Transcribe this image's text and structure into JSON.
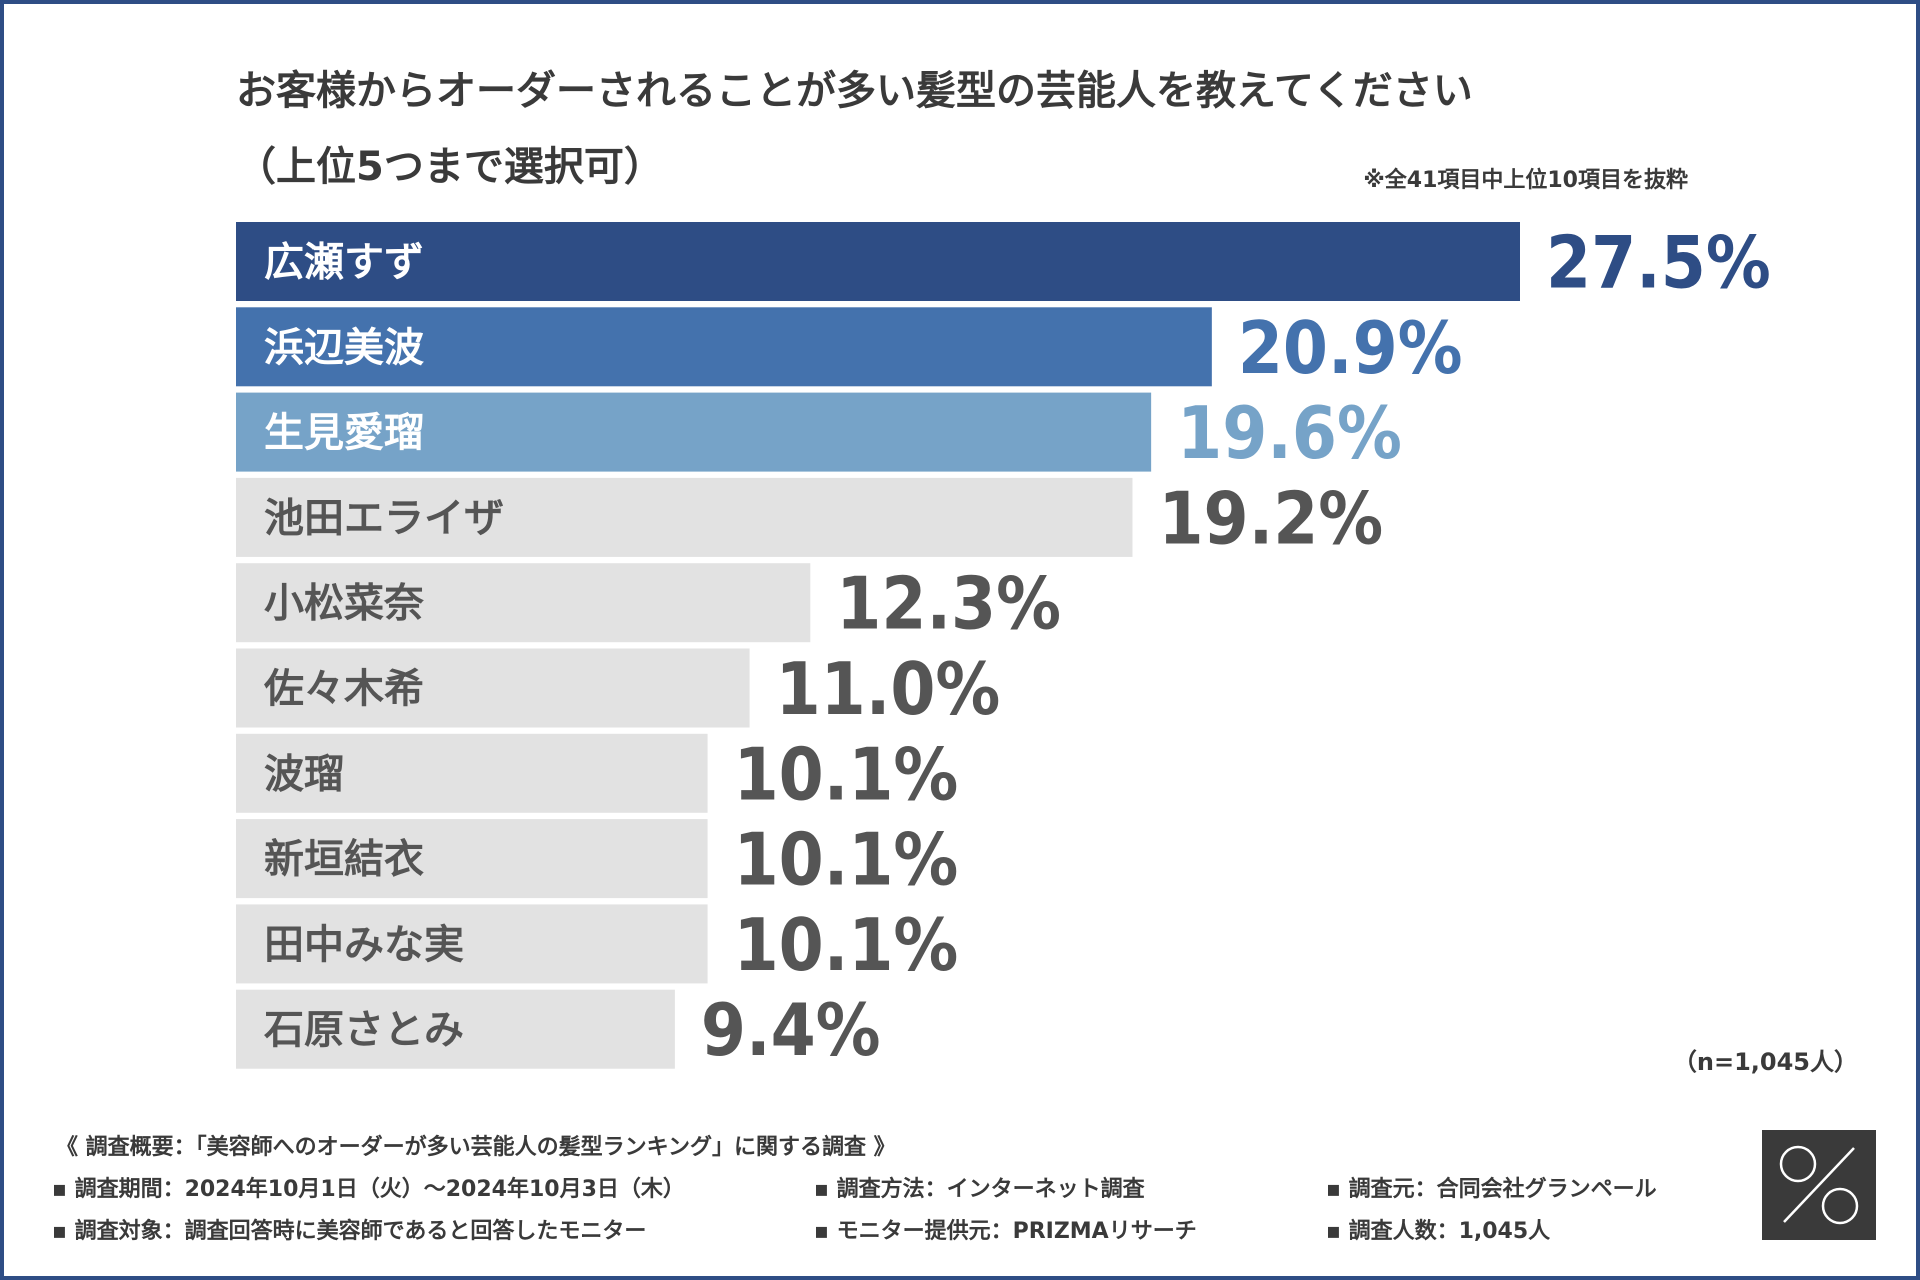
{
  "chart_data": {
    "type": "bar",
    "orientation": "horizontal",
    "title": "お客様からオーダーされることが多い髪型の芸能人を教えてください",
    "subtitle": "（上位5つまで選択可）",
    "note": "※全41項目中上位10項目を抜粋",
    "sample_size": "（n=1,045人）",
    "categories": [
      "広瀬すず",
      "浜辺美波",
      "生見愛瑠",
      "池田エライザ",
      "小松菜奈",
      "佐々木希",
      "波瑠",
      "新垣結衣",
      "田中みな実",
      "石原さとみ"
    ],
    "values": [
      27.5,
      20.9,
      19.6,
      19.2,
      12.3,
      11.0,
      10.1,
      10.1,
      10.1,
      9.4
    ],
    "value_labels": [
      "27.5%",
      "20.9%",
      "19.6%",
      "19.2%",
      "12.3%",
      "11.0%",
      "10.1%",
      "10.1%",
      "10.1%",
      "9.4%"
    ],
    "unit": "%",
    "xlim": [
      0,
      27.5
    ],
    "bar_colors": [
      "#2e4d85",
      "#4472ad",
      "#76a3c8",
      "#e2e2e2",
      "#e2e2e2",
      "#e2e2e2",
      "#e2e2e2",
      "#e2e2e2",
      "#e2e2e2",
      "#e2e2e2"
    ],
    "label_colors": [
      "#ffffff",
      "#ffffff",
      "#ffffff",
      "#555555",
      "#555555",
      "#555555",
      "#555555",
      "#555555",
      "#555555",
      "#555555"
    ],
    "value_colors": [
      "#2e4d85",
      "#4472ad",
      "#76a3c8",
      "#555555",
      "#555555",
      "#555555",
      "#555555",
      "#555555",
      "#555555",
      "#555555"
    ],
    "legend": "none",
    "grid": false
  },
  "survey": {
    "heading": "《 調査概要：「美容師へのオーダーが多い芸能人の髪型ランキング」に関する調査 》",
    "period": "▪ 調査期間：2024年10月1日（火）〜2024年10月3日（木）",
    "method": "▪ 調査方法：インターネット調査",
    "source": "▪ 調査元：合同会社グランペール",
    "target": "▪ 調査対象：調査回答時に美容師であると回答したモニター",
    "provider": "▪ モニター提供元：PRIZMAリサーチ",
    "count": "▪ 調査人数：1,045人"
  },
  "colors": {
    "frame": "#2e4d85",
    "text": "#3a3a3a",
    "logo_bg": "#3a3a3a",
    "logo_fg": "#ffffff"
  },
  "logo": {
    "icon": "percent-logo-icon"
  }
}
